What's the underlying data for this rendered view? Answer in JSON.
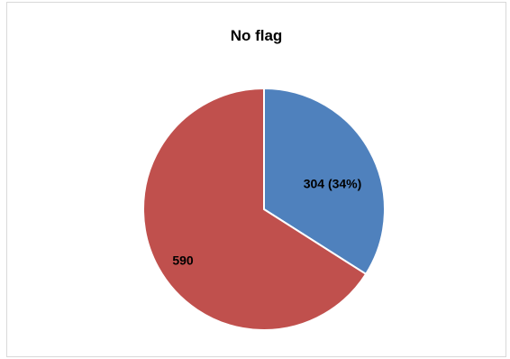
{
  "chart_data": {
    "type": "pie",
    "title": "No flag",
    "categories": [
      "",
      ""
    ],
    "values": [
      304,
      590
    ],
    "data_labels": [
      "304 (34%)",
      "590"
    ],
    "colors": [
      "#4f81bd",
      "#c0504d"
    ],
    "start_angle": "12 o'clock, clockwise",
    "legend": "none"
  }
}
